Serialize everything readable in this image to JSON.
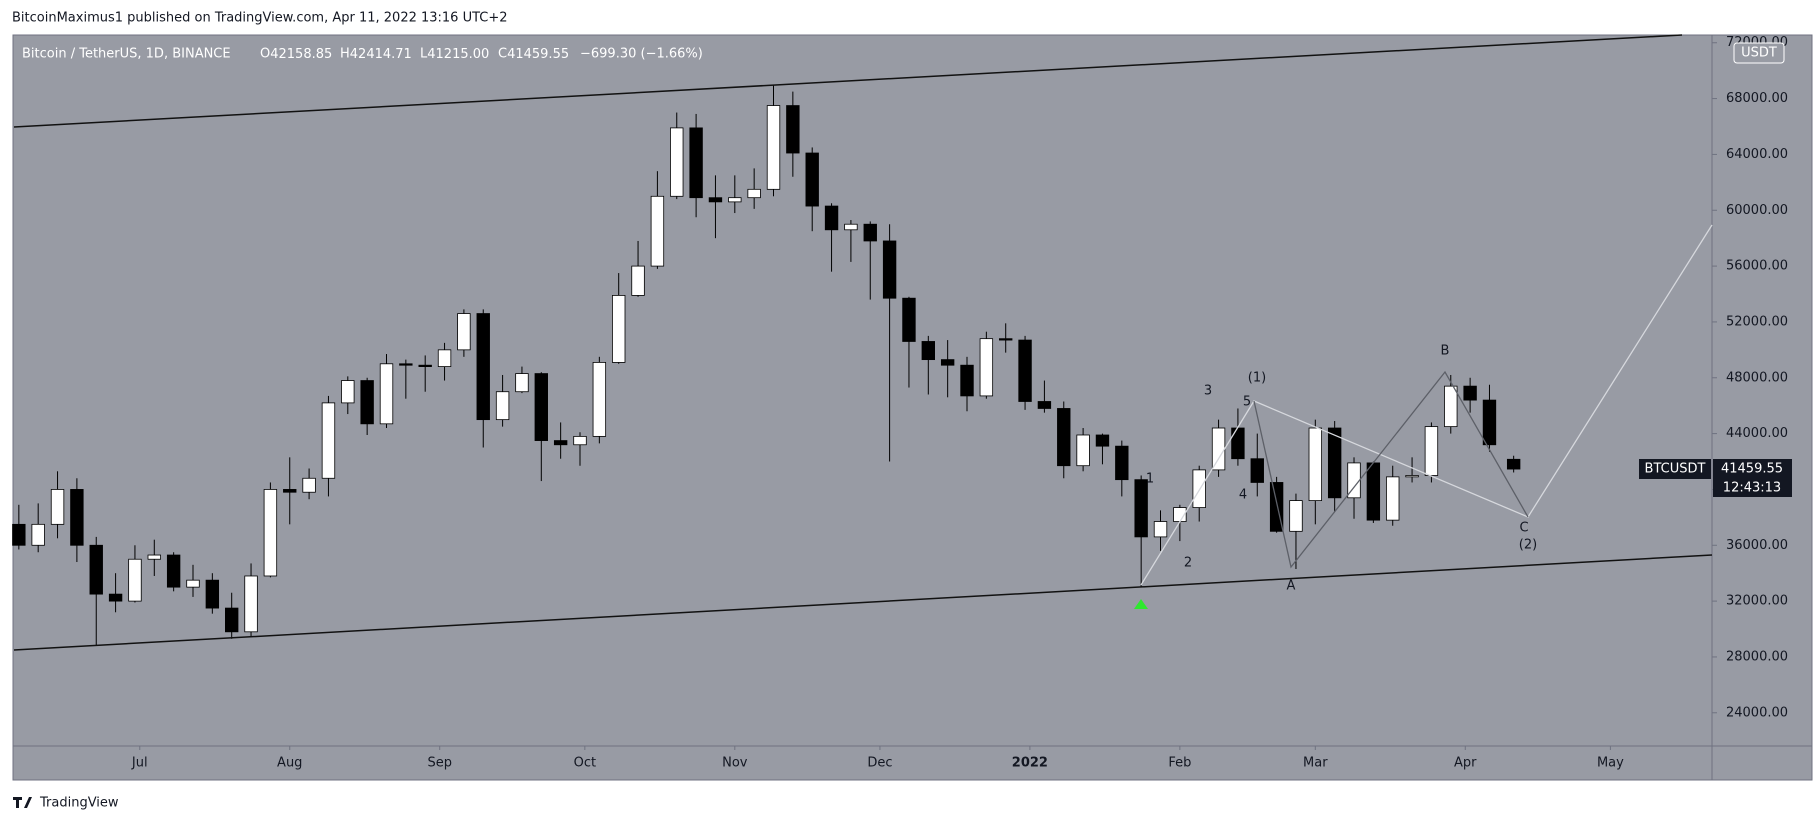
{
  "header": {
    "publisher": "BitcoinMaximus1 published on TradingView.com, Apr 11, 2022 13:16 UTC+2"
  },
  "legend": {
    "symbol": "Bitcoin / TetherUS, 1D, BINANCE",
    "open": "42158.85",
    "high": "42414.71",
    "low": "41215.00",
    "close": "41459.55",
    "change": "−699.30 (−1.66%)"
  },
  "price_tag": {
    "symbol": "BTCUSDT",
    "countdown": "12:43:13"
  },
  "currency": "USDT",
  "annotations": [
    "1",
    "2",
    "3",
    "4",
    "5",
    "(1)",
    "A",
    "B",
    "C",
    "(2)"
  ],
  "footer": {
    "brand": "TradingView"
  },
  "chart_data": {
    "type": "candlestick",
    "x": [
      "2021-06-06",
      "2021-06-10",
      "2021-06-14",
      "2021-06-18",
      "2021-06-22",
      "2021-06-26",
      "2021-06-30",
      "2021-07-04",
      "2021-07-08",
      "2021-07-12",
      "2021-07-16",
      "2021-07-20",
      "2021-07-24",
      "2021-07-28",
      "2021-08-01",
      "2021-08-05",
      "2021-08-09",
      "2021-08-13",
      "2021-08-17",
      "2021-08-21",
      "2021-08-25",
      "2021-08-29",
      "2021-09-02",
      "2021-09-06",
      "2021-09-10",
      "2021-09-14",
      "2021-09-18",
      "2021-09-22",
      "2021-09-26",
      "2021-09-30",
      "2021-10-04",
      "2021-10-08",
      "2021-10-12",
      "2021-10-16",
      "2021-10-20",
      "2021-10-24",
      "2021-10-28",
      "2021-11-01",
      "2021-11-05",
      "2021-11-09",
      "2021-11-13",
      "2021-11-17",
      "2021-11-21",
      "2021-11-25",
      "2021-11-29",
      "2021-12-03",
      "2021-12-07",
      "2021-12-11",
      "2021-12-15",
      "2021-12-19",
      "2021-12-23",
      "2021-12-27",
      "2021-12-31",
      "2022-01-04",
      "2022-01-08",
      "2022-01-12",
      "2022-01-16",
      "2022-01-20",
      "2022-01-24",
      "2022-01-28",
      "2022-02-01",
      "2022-02-05",
      "2022-02-09",
      "2022-02-13",
      "2022-02-17",
      "2022-02-21",
      "2022-02-25",
      "2022-03-01",
      "2022-03-05",
      "2022-03-09",
      "2022-03-13",
      "2022-03-17",
      "2022-03-21",
      "2022-03-25",
      "2022-03-29",
      "2022-04-02",
      "2022-04-06",
      "2022-04-11"
    ],
    "open": [
      37500,
      36000,
      37500,
      40000,
      36000,
      32500,
      32000,
      35000,
      35300,
      33000,
      33500,
      31500,
      29800,
      33800,
      40000,
      39800,
      40800,
      46200,
      47800,
      44700,
      49000,
      48900,
      48800,
      50000,
      52600,
      45000,
      47000,
      48300,
      43500,
      43200,
      43800,
      49100,
      53900,
      56000,
      61000,
      65900,
      60900,
      60600,
      60900,
      61500,
      67500,
      64100,
      60300,
      58600,
      59000,
      57800,
      53700,
      50600,
      49300,
      48900,
      46700,
      50800,
      50700,
      46300,
      45800,
      41700,
      43900,
      43100,
      40700,
      36600,
      37700,
      38700,
      41400,
      44400,
      42200,
      40500,
      37000,
      39200,
      44400,
      39400,
      41900,
      37800,
      40900,
      41000,
      44500,
      47400,
      46400,
      42158.85
    ],
    "high": [
      38900,
      39000,
      41300,
      40800,
      36600,
      34000,
      36000,
      36400,
      35500,
      34600,
      34000,
      32600,
      34700,
      40500,
      42300,
      41500,
      46700,
      48100,
      48000,
      49700,
      49300,
      49600,
      50500,
      52900,
      52900,
      48200,
      48800,
      48400,
      44800,
      44100,
      49500,
      55500,
      57800,
      62800,
      67000,
      66900,
      62500,
      62500,
      63000,
      69000,
      68500,
      64500,
      60500,
      59300,
      59200,
      59000,
      53800,
      51000,
      50700,
      49500,
      51300,
      51900,
      51000,
      47800,
      46300,
      44400,
      44000,
      43500,
      41000,
      38500,
      38900,
      41700,
      45000,
      45800,
      44000,
      40900,
      39700,
      45000,
      44900,
      42300,
      42000,
      41700,
      42300,
      44800,
      48200,
      48000,
      47500,
      42414.71
    ],
    "low": [
      35700,
      35500,
      36500,
      34800,
      28800,
      31200,
      31900,
      33800,
      32700,
      32300,
      31100,
      29300,
      29500,
      33700,
      37500,
      39300,
      39500,
      45400,
      43900,
      44400,
      46500,
      47000,
      47800,
      49500,
      43000,
      44500,
      46900,
      40600,
      42200,
      41700,
      43300,
      49000,
      53800,
      55800,
      60800,
      59500,
      58000,
      59800,
      60100,
      61000,
      62400,
      58500,
      55600,
      56300,
      53600,
      42000,
      47300,
      46800,
      46600,
      45600,
      46500,
      49800,
      45700,
      45500,
      40800,
      41300,
      41800,
      39500,
      33000,
      35600,
      36300,
      37700,
      40900,
      41700,
      39500,
      36900,
      34300,
      37500,
      38400,
      37900,
      37600,
      37400,
      40500,
      40500,
      44000,
      45500,
      42700,
      41215
    ],
    "close": [
      36000,
      37500,
      40000,
      36000,
      32500,
      32000,
      35000,
      35300,
      33000,
      33500,
      31500,
      29800,
      33800,
      40000,
      39800,
      40800,
      46200,
      47800,
      44700,
      49000,
      48900,
      48800,
      50000,
      52600,
      45000,
      47000,
      48300,
      43500,
      43200,
      43800,
      49100,
      53900,
      56000,
      61000,
      65900,
      60900,
      60600,
      60900,
      61500,
      67500,
      64100,
      60300,
      58600,
      59000,
      57800,
      53700,
      50600,
      49300,
      48900,
      46700,
      50800,
      50700,
      46300,
      45800,
      41700,
      43900,
      43100,
      40700,
      36600,
      37700,
      38700,
      41400,
      44400,
      42200,
      40500,
      37000,
      39200,
      44400,
      39400,
      41900,
      37800,
      40900,
      41000,
      44500,
      47400,
      46400,
      43200,
      41459.55
    ],
    "up_color": "#ffffff",
    "down_color": "#000000",
    "xlim": [
      "2021-06-05",
      "2022-05-22"
    ],
    "xticks": [
      {
        "value": "2021-07-01",
        "label": "Jul"
      },
      {
        "value": "2021-08-01",
        "label": "Aug"
      },
      {
        "value": "2021-09-01",
        "label": "Sep"
      },
      {
        "value": "2021-10-01",
        "label": "Oct"
      },
      {
        "value": "2021-11-01",
        "label": "Nov"
      },
      {
        "value": "2021-12-01",
        "label": "Dec"
      },
      {
        "value": "2022-01-01",
        "label": "2022"
      },
      {
        "value": "2022-02-01",
        "label": "Feb"
      },
      {
        "value": "2022-03-01",
        "label": "Mar"
      },
      {
        "value": "2022-04-01",
        "label": "Apr"
      },
      {
        "value": "2022-05-01",
        "label": "May"
      }
    ],
    "ylim": [
      21620,
      72555
    ],
    "yticks": [
      {
        "value": 24000,
        "label": "24000.00"
      },
      {
        "value": 28000,
        "label": "28000.00"
      },
      {
        "value": 32000,
        "label": "32000.00"
      },
      {
        "value": 36000,
        "label": "36000.00"
      },
      {
        "value": 40000,
        "label": "40000.00"
      },
      {
        "value": 44000,
        "label": "44000.00"
      },
      {
        "value": 48000,
        "label": "48000.00"
      },
      {
        "value": 52000,
        "label": "52000.00"
      },
      {
        "value": 56000,
        "label": "56000.00"
      },
      {
        "value": 60000,
        "label": "60000.00"
      },
      {
        "value": 64000,
        "label": "64000.00"
      },
      {
        "value": 68000,
        "label": "68000.00"
      },
      {
        "value": 72000,
        "label": "72000.00"
      }
    ],
    "grid": false
  }
}
